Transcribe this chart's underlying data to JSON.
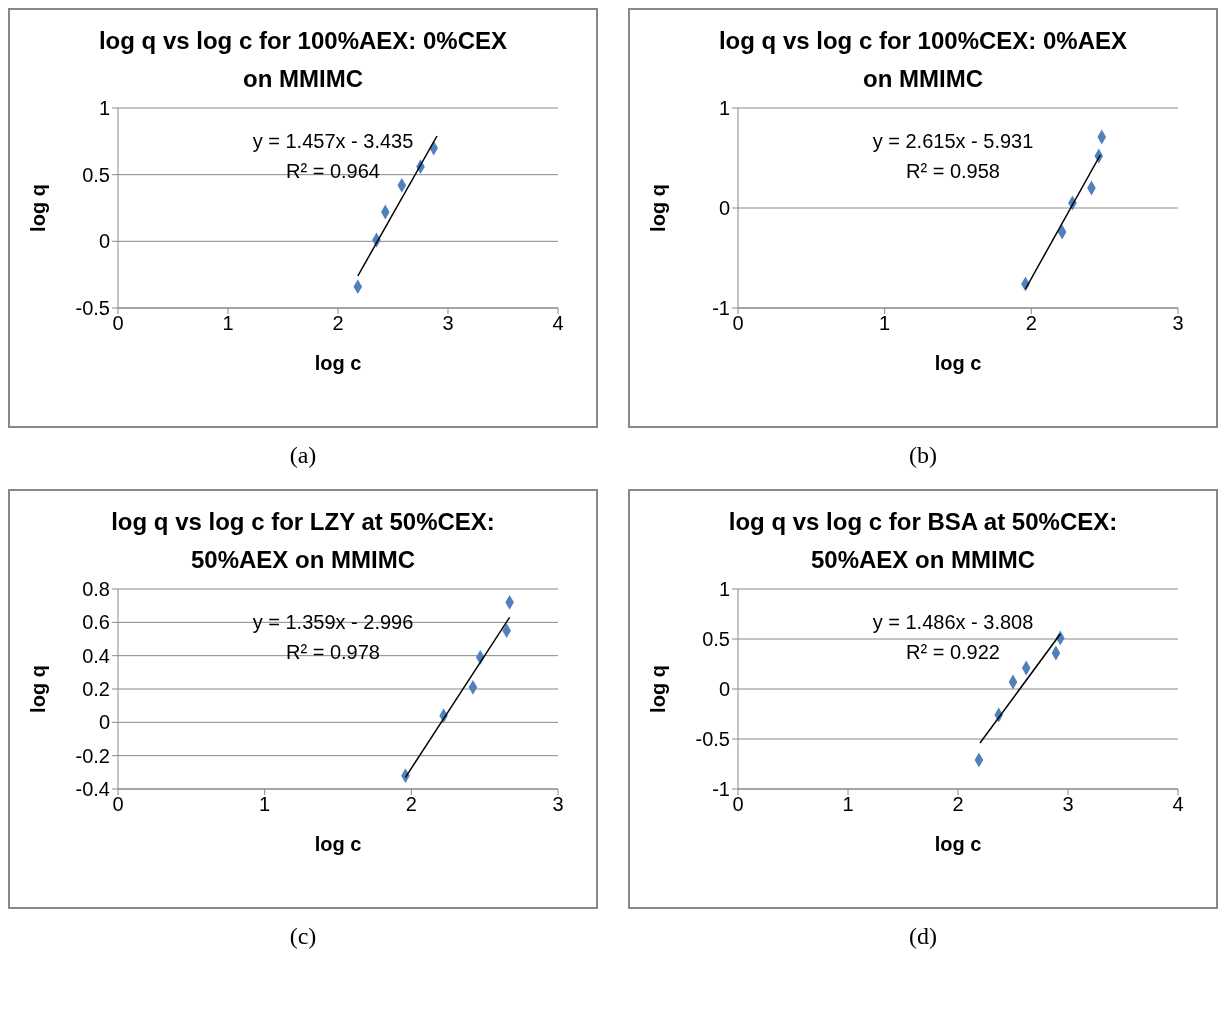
{
  "chart_data": [
    {
      "type": "scatter",
      "title": "log q vs log c for 100%AEX: 0%CEX on MMIMC",
      "xlabel": "log c",
      "ylabel": "log q",
      "xlim": [
        0,
        4
      ],
      "xticks": [
        0,
        1,
        2,
        3,
        4
      ],
      "ylim": [
        -0.5,
        1
      ],
      "yticks": [
        -0.5,
        0,
        0.5,
        1
      ],
      "grid": "y",
      "marker": "diamond",
      "series": [
        {
          "type": "scatter",
          "color": "#4f81bd",
          "x": [
            2.18,
            2.35,
            2.43,
            2.58,
            2.75,
            2.87
          ],
          "values": [
            -0.34,
            0.01,
            0.22,
            0.42,
            0.56,
            0.7
          ]
        },
        {
          "type": "line",
          "color": "#000000",
          "marker": "none",
          "x": [
            2.18,
            2.9
          ],
          "values": [
            -0.26,
            0.79
          ]
        }
      ],
      "annotations": [
        "y = 1.457x - 3.435",
        "R² = 0.964",
        "(a)"
      ]
    },
    {
      "type": "scatter",
      "title": "log q vs log c for 100%CEX: 0%AEX on MMIMC",
      "xlabel": "log c",
      "ylabel": "log q",
      "xlim": [
        0,
        3
      ],
      "xticks": [
        0,
        1,
        2,
        3
      ],
      "ylim": [
        -1,
        1
      ],
      "yticks": [
        -1,
        0,
        1
      ],
      "grid": "y",
      "marker": "diamond",
      "series": [
        {
          "type": "scatter",
          "color": "#4f81bd",
          "x": [
            1.96,
            2.21,
            2.28,
            2.41,
            2.46,
            2.48
          ],
          "values": [
            -0.76,
            -0.24,
            0.05,
            0.2,
            0.52,
            0.71
          ]
        },
        {
          "type": "line",
          "color": "#000000",
          "marker": "none",
          "x": [
            1.96,
            2.47
          ],
          "values": [
            -0.81,
            0.53
          ]
        }
      ],
      "annotations": [
        "y = 2.615x - 5.931",
        "R² = 0.958",
        "(b)"
      ]
    },
    {
      "type": "scatter",
      "title": "log q vs log c for LZY at 50%CEX: 50%AEX on MMIMC",
      "xlabel": "log c",
      "ylabel": "log q",
      "xlim": [
        0,
        3
      ],
      "xticks": [
        0,
        1,
        2,
        3
      ],
      "ylim": [
        -0.4,
        0.8
      ],
      "yticks": [
        -0.4,
        -0.2,
        0,
        0.2,
        0.4,
        0.6,
        0.8
      ],
      "grid": "y",
      "marker": "diamond",
      "series": [
        {
          "type": "scatter",
          "color": "#4f81bd",
          "x": [
            1.96,
            2.22,
            2.42,
            2.47,
            2.65,
            2.67
          ],
          "values": [
            -0.32,
            0.04,
            0.21,
            0.39,
            0.55,
            0.72
          ]
        },
        {
          "type": "line",
          "color": "#000000",
          "marker": "none",
          "x": [
            1.96,
            2.67
          ],
          "values": [
            -0.33,
            0.63
          ]
        }
      ],
      "annotations": [
        "y = 1.359x - 2.996",
        "R² = 0.978",
        "(c)"
      ]
    },
    {
      "type": "scatter",
      "title": "log q vs log c for BSA at 50%CEX: 50%AEX on MMIMC",
      "xlabel": "log c",
      "ylabel": "log q",
      "xlim": [
        0,
        4
      ],
      "xticks": [
        0,
        1,
        2,
        3,
        4
      ],
      "ylim": [
        -1,
        1
      ],
      "yticks": [
        -1,
        -0.5,
        0,
        0.5,
        1
      ],
      "grid": "y",
      "marker": "diamond",
      "series": [
        {
          "type": "scatter",
          "color": "#4f81bd",
          "x": [
            2.19,
            2.37,
            2.5,
            2.62,
            2.89,
            2.93
          ],
          "values": [
            -0.71,
            -0.26,
            0.07,
            0.21,
            0.36,
            0.51
          ]
        },
        {
          "type": "line",
          "color": "#000000",
          "marker": "none",
          "x": [
            2.2,
            2.93
          ],
          "values": [
            -0.54,
            0.55
          ]
        }
      ],
      "annotations": [
        "y = 1.486x - 3.808",
        "R² = 0.922",
        "(d)"
      ]
    }
  ]
}
